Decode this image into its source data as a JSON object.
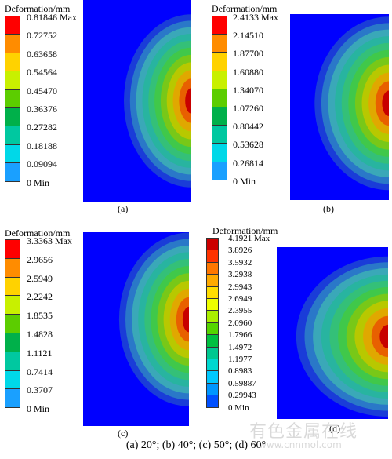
{
  "legend_title": "Deformation/mm",
  "colors": [
    "#ff0000",
    "#ff5a00",
    "#ffb400",
    "#ffff00",
    "#b4ff00",
    "#46d000",
    "#00c070",
    "#00e0c0",
    "#00b4ff",
    "#2050ff",
    "#0000ff"
  ],
  "panels": [
    {
      "id": "a",
      "label": "(a)",
      "scale": [
        "0.81846 Max",
        "0.72752",
        "0.63658",
        "0.54564",
        "0.45470",
        "0.36376",
        "0.27282",
        "0.18188",
        "0.09094",
        "0 Min"
      ]
    },
    {
      "id": "b",
      "label": "(b)",
      "scale": [
        "2.4133 Max",
        "2.14510",
        "1.87700",
        "1.60880",
        "1.34070",
        "1.07260",
        "0.80442",
        "0.53628",
        "0.26814",
        "0 Min"
      ]
    },
    {
      "id": "c",
      "label": "(c)",
      "scale": [
        "3.3363 Max",
        "2.9656",
        "2.5949",
        "2.2242",
        "1.8535",
        "1.4828",
        "1.1121",
        "0.7414",
        "0.3707",
        "0 Min"
      ]
    },
    {
      "id": "d",
      "label": "(d)",
      "scale": [
        "4.1921 Max",
        "3.8926",
        "3.5932",
        "3.2938",
        "2.9943",
        "2.6949",
        "2.3955",
        "2.0960",
        "1.7966",
        "1.4972",
        "1.1977",
        "0.8983",
        "0.59887",
        "0.29943",
        "0 Min"
      ]
    }
  ],
  "caption": "(a) 20°; (b) 40°; (c) 50°; (d) 60°",
  "watermark": "有色金属在线",
  "watermark_url": "www.cnnmol.com"
}
